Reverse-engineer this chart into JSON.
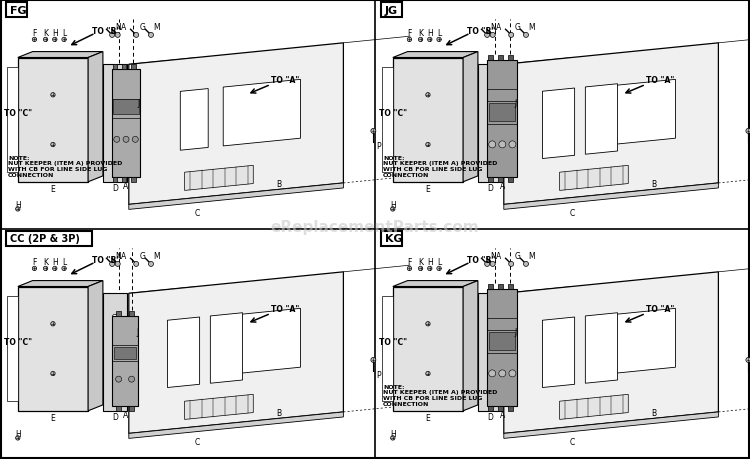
{
  "background_color": "#ffffff",
  "watermark": "eReplacementParts.com",
  "panels": [
    {
      "label": "FG",
      "ox": 3,
      "oy": 232,
      "note": "NOTE:\nNUT KEEPER (ITEM A) PROVIDED\nWITH CB FOR LINE SIDE LUG\nCONNECTION",
      "cb_poles": 3,
      "cb_large": false
    },
    {
      "label": "JG",
      "ox": 378,
      "oy": 232,
      "note": "NOTE:\nNUT KEEPER (ITEM A) PROVIDED\nWITH CB FOR LINE SIDE LUG\nCONNECTION",
      "cb_poles": 3,
      "cb_large": true
    },
    {
      "label": "CC (2P & 3P)",
      "ox": 3,
      "oy": 2,
      "note": "",
      "cb_poles": 2,
      "cb_large": false
    },
    {
      "label": "KG",
      "ox": 378,
      "oy": 2,
      "note": "NOTE:\nNUT KEEPER (ITEM A) PROVIDED\nWITH CB FOR LINE SIDE LUG\nCONNECTION",
      "cb_poles": 3,
      "cb_large": true
    }
  ]
}
